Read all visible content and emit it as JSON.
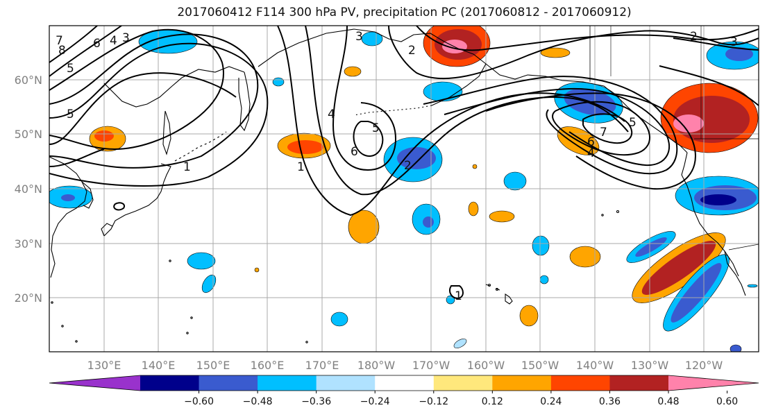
{
  "title": "2017060412 F114 300 hPa PV, precipitation PC (2017060812 - 2017060912)",
  "lat_labels": [
    "60°N",
    "50°N",
    "40°N",
    "30°N",
    "20°N"
  ],
  "lon_labels": [
    "130°E",
    "140°E",
    "150°E",
    "160°E",
    "170°E",
    "180°W",
    "170°W",
    "160°W",
    "150°W",
    "140°W",
    "130°W",
    "120°W"
  ],
  "colorbar": {
    "colors": [
      "#9932cc",
      "#00008b",
      "#3a5bcf",
      "#00bfff",
      "#b0e2ff",
      "#ffffff",
      "#ffe87c",
      "#ffa500",
      "#ff4500",
      "#b22222",
      "#ff82ab"
    ],
    "ticks": [
      "−0.60",
      "−0.48",
      "−0.36",
      "−0.24",
      "−0.12",
      "0.12",
      "0.24",
      "0.36",
      "0.48",
      "0.60"
    ],
    "extend": "both"
  },
  "contour_labels": [
    "7",
    "8",
    "6",
    "4",
    "3",
    "5",
    "5",
    "3",
    "2",
    "1",
    "4",
    "5",
    "6",
    "2",
    "6",
    "7",
    "5",
    "4",
    "1",
    "2",
    "3",
    "1"
  ],
  "colors": {
    "grid": "#a8a8a8",
    "coast": "#000000",
    "contour": "#000000"
  }
}
